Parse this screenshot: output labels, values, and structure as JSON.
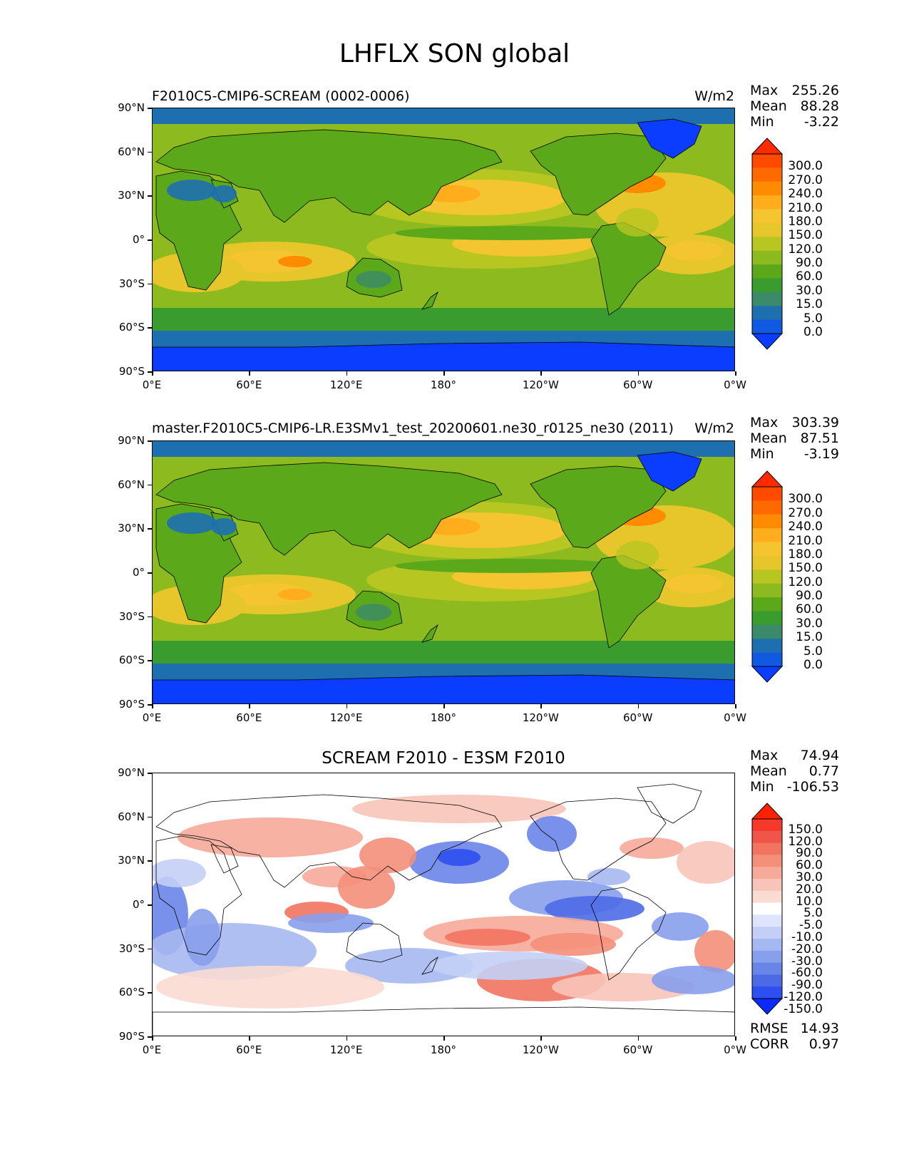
{
  "title": "LHFLX SON global",
  "lat_ticks": [
    "90°N",
    "60°N",
    "30°N",
    "0°",
    "30°S",
    "60°S",
    "90°S"
  ],
  "lon_ticks": [
    "0°E",
    "60°E",
    "120°E",
    "180°",
    "120°W",
    "60°W",
    "0°W"
  ],
  "panels": [
    {
      "title": "F2010C5-CMIP6-SCREAM (0002-0006)",
      "units": "W/m2",
      "stats": {
        "max_label": "Max",
        "max": "255.26",
        "mean_label": "Mean",
        "mean": "88.28",
        "min_label": "Min",
        "min": "-3.22"
      },
      "colorbar": {
        "labels": [
          "300.0",
          "270.0",
          "240.0",
          "210.0",
          "180.0",
          "150.0",
          "120.0",
          "90.0",
          "60.0",
          "30.0",
          "15.0",
          "5.0",
          "0.0"
        ],
        "colors": [
          "#ff2b00",
          "#ff4a00",
          "#ff6a00",
          "#ff8c00",
          "#ffad1c",
          "#f5c431",
          "#e6c62b",
          "#b8c622",
          "#8dba1f",
          "#5ba81b",
          "#3a9c2e",
          "#3b8a6a",
          "#1e6fb0",
          "#0f5ae0",
          "#0a3dff"
        ]
      },
      "field": "model"
    },
    {
      "title": "master.F2010C5-CMIP6-LR.E3SMv1_test_20200601.ne30_r0125_ne30 (2011)",
      "units": "W/m2",
      "stats": {
        "max_label": "Max",
        "max": "303.39",
        "mean_label": "Mean",
        "mean": "87.51",
        "min_label": "Min",
        "min": "-3.19"
      },
      "colorbar": {
        "labels": [
          "300.0",
          "270.0",
          "240.0",
          "210.0",
          "180.0",
          "150.0",
          "120.0",
          "90.0",
          "60.0",
          "30.0",
          "15.0",
          "5.0",
          "0.0"
        ],
        "colors": [
          "#ff2b00",
          "#ff4a00",
          "#ff6a00",
          "#ff8c00",
          "#ffad1c",
          "#f5c431",
          "#e6c62b",
          "#b8c622",
          "#8dba1f",
          "#5ba81b",
          "#3a9c2e",
          "#3b8a6a",
          "#1e6fb0",
          "#0f5ae0",
          "#0a3dff"
        ]
      },
      "field": "model"
    },
    {
      "title": "SCREAM F2010 - E3SM F2010",
      "units": "",
      "stats": {
        "max_label": "Max",
        "max": "74.94",
        "mean_label": "Mean",
        "mean": "0.77",
        "min_label": "Min",
        "min": "-106.53"
      },
      "colorbar": {
        "labels": [
          "150.0",
          "120.0",
          "90.0",
          "60.0",
          "30.0",
          "20.0",
          "10.0",
          "5.0",
          "-5.0",
          "-10.0",
          "-20.0",
          "-30.0",
          "-60.0",
          "-90.0",
          "-120.0",
          "-150.0"
        ],
        "colors": [
          "#ff2200",
          "#f5392a",
          "#f0554a",
          "#f2735f",
          "#f48f7a",
          "#f6aa99",
          "#f8c4b8",
          "#fbdcd3",
          "#ffffff",
          "#dde4fb",
          "#c3cff6",
          "#a6b8f1",
          "#889fec",
          "#6a85e8",
          "#4c6ae6",
          "#2e4ff0",
          "#0a2bff"
        ]
      },
      "rmse_label": "RMSE",
      "rmse": "14.93",
      "corr_label": "CORR",
      "corr": "0.97",
      "field": "diff"
    }
  ]
}
